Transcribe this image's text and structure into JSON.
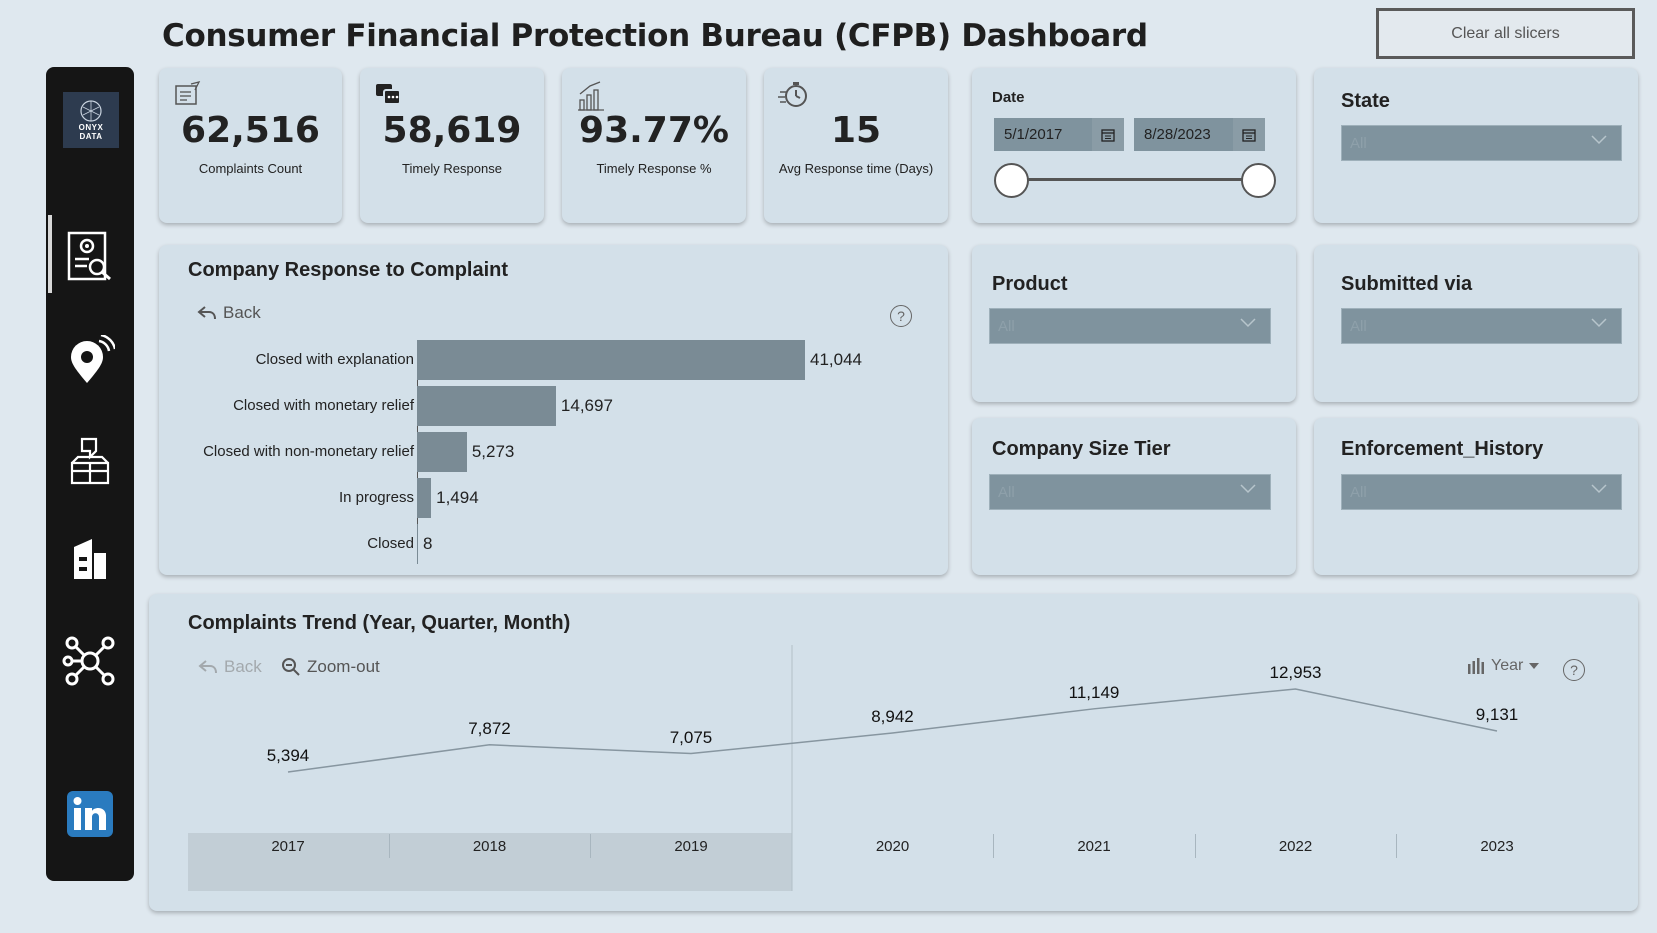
{
  "header": {
    "title": "Consumer Financial Protection Bureau (CFPB) Dashboard",
    "clear_label": "Clear all slicers"
  },
  "sidebar": {
    "logo_line1": "ONYX",
    "logo_line2": "DATA",
    "items": [
      {
        "icon": "report-search-icon"
      },
      {
        "icon": "location-pin-icon"
      },
      {
        "icon": "feedback-box-icon"
      },
      {
        "icon": "building-icon"
      },
      {
        "icon": "network-icon"
      },
      {
        "icon": "linkedin-icon"
      }
    ]
  },
  "kpis": [
    {
      "value": "62,516",
      "label": "Complaints Count",
      "icon": "document-edit-icon"
    },
    {
      "value": "58,619",
      "label": "Timely Response",
      "icon": "chat-bubbles-icon"
    },
    {
      "value": "93.77%",
      "label": "Timely Response %",
      "icon": "chart-growth-icon"
    },
    {
      "value": "15",
      "label": "Avg Response time (Days)",
      "icon": "stopwatch-icon"
    }
  ],
  "date_slicer": {
    "label": "Date",
    "start": "5/1/2017",
    "end": "8/28/2023"
  },
  "slicers": {
    "state": {
      "title": "State",
      "value": "All"
    },
    "product": {
      "title": "Product",
      "value": "All"
    },
    "submitted_via": {
      "title": "Submitted via",
      "value": "All"
    },
    "company_size": {
      "title": "Company Size Tier",
      "value": "All"
    },
    "enforcement": {
      "title": "Enforcement_History",
      "value": "All"
    }
  },
  "response_chart": {
    "title": "Company Response to Complaint",
    "back_label": "Back",
    "help": "?"
  },
  "trend_chart": {
    "title": "Complaints Trend (Year, Quarter, Month)",
    "back_label": "Back",
    "zoom_label": "Zoom-out",
    "level_label": "Year",
    "help": "?"
  },
  "chart_data": [
    {
      "type": "bar",
      "orientation": "horizontal",
      "title": "Company Response to Complaint",
      "categories": [
        "Closed with explanation",
        "Closed with monetary relief",
        "Closed with non-monetary relief",
        "In progress",
        "Closed"
      ],
      "values": [
        41044,
        14697,
        5273,
        1494,
        8
      ],
      "value_labels": [
        "41,044",
        "14,697",
        "5,273",
        "1,494",
        "8"
      ],
      "color": "#7a8b95"
    },
    {
      "type": "line",
      "title": "Complaints Trend (Year, Quarter, Month)",
      "x": [
        "2017",
        "2018",
        "2019",
        "2020",
        "2021",
        "2022",
        "2023"
      ],
      "values": [
        5394,
        7872,
        7075,
        8942,
        11149,
        12953,
        9131
      ],
      "value_labels": [
        "5,394",
        "7,872",
        "7,075",
        "8,942",
        "11,149",
        "12,953",
        "9,131"
      ],
      "color": "#8796a0"
    }
  ]
}
